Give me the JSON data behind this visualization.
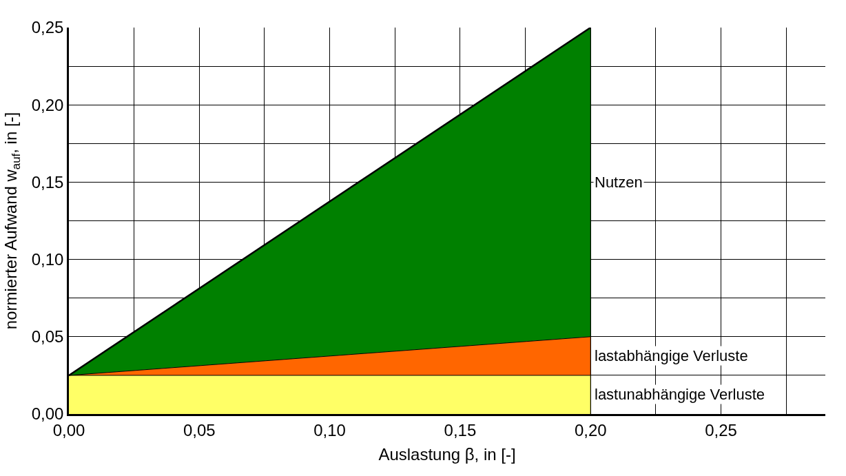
{
  "chart_data": {
    "type": "area",
    "stacked": true,
    "xlabel": "Auslastung β, in [-]",
    "ylabel": "normierter Aufwand w$_{auf}$, in [-]",
    "x": [
      0,
      0.2
    ],
    "series": [
      {
        "color": "#ffff66",
        "values": [
          0.025,
          0.025
        ]
      },
      {
        "color": "#ff6600",
        "values": [
          0,
          0.025
        ]
      },
      {
        "color": "#008000",
        "values": [
          0,
          0.2
        ]
      }
    ],
    "annotations": [
      "Nutzen",
      "lastabhängige Verluste",
      "lastunabhängige Verluste"
    ],
    "xlim": [
      0,
      0.29
    ],
    "ylim": [
      0,
      0.25
    ],
    "xticks": [
      {
        "value": 0,
        "label": "0,00"
      },
      {
        "value": 0.025,
        "label": null
      },
      {
        "value": 0.05,
        "label": "0,05"
      },
      {
        "value": 0.075,
        "label": null
      },
      {
        "value": 0.1,
        "label": "0,10"
      },
      {
        "value": 0.125,
        "label": null
      },
      {
        "value": 0.15,
        "label": "0,15"
      },
      {
        "value": 0.175,
        "label": null
      },
      {
        "value": 0.2,
        "label": "0,20"
      },
      {
        "value": 0.225,
        "label": null
      },
      {
        "value": 0.25,
        "label": "0,25"
      },
      {
        "value": 0.275,
        "label": null
      }
    ],
    "yticks": [
      {
        "value": 0,
        "label": "0,00"
      },
      {
        "value": 0.025,
        "label": null
      },
      {
        "value": 0.05,
        "label": "0,05"
      },
      {
        "value": 0.075,
        "label": null
      },
      {
        "value": 0.1,
        "label": "0,10"
      },
      {
        "value": 0.125,
        "label": null
      },
      {
        "value": 0.15,
        "label": "0,15"
      },
      {
        "value": 0.175,
        "label": null
      },
      {
        "value": 0.2,
        "label": "0,20"
      },
      {
        "value": 0.225,
        "label": null
      },
      {
        "value": 0.25,
        "label": "0,25"
      }
    ],
    "grid": true
  }
}
